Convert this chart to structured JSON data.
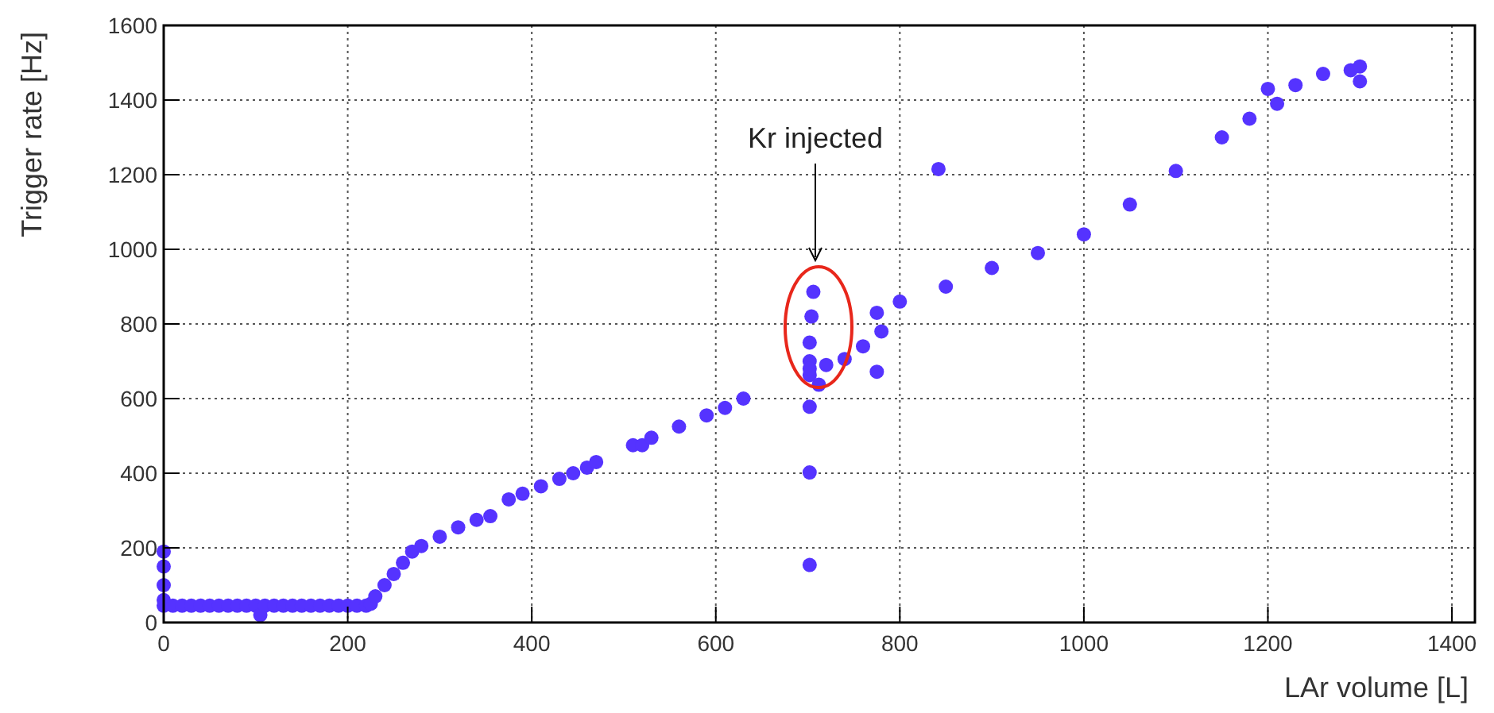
{
  "chart_data": {
    "type": "scatter",
    "xlabel": "LAr volume [L]",
    "ylabel": "Trigger rate [Hz]",
    "xlim": [
      0,
      1425
    ],
    "ylim": [
      0,
      1600
    ],
    "xticks": [
      0,
      200,
      400,
      600,
      800,
      1000,
      1200,
      1400
    ],
    "yticks": [
      0,
      200,
      400,
      600,
      800,
      1000,
      1200,
      1400,
      1600
    ],
    "grid": true,
    "marker": "circle",
    "annotations": [
      "Kr injected"
    ],
    "series": [
      {
        "color": "#5533ff",
        "x": [
          0,
          0,
          0,
          0,
          0,
          10,
          20,
          30,
          40,
          50,
          60,
          70,
          80,
          90,
          100,
          105,
          110,
          120,
          130,
          140,
          150,
          160,
          170,
          180,
          190,
          200,
          210,
          220,
          225,
          230,
          240,
          250,
          260,
          270,
          280,
          300,
          320,
          340,
          355,
          375,
          390,
          410,
          430,
          445,
          460,
          470,
          510,
          520,
          530,
          560,
          590,
          610,
          630,
          702,
          702,
          702,
          704,
          706,
          702,
          702,
          702,
          702,
          712,
          720,
          740,
          760,
          775,
          775,
          780,
          800,
          842,
          850,
          900,
          950,
          1000,
          1050,
          1100,
          1150,
          1180,
          1200,
          1210,
          1230,
          1260,
          1290,
          1300,
          1300
        ],
        "values": [
          190,
          150,
          100,
          60,
          45,
          45,
          45,
          45,
          45,
          45,
          45,
          45,
          45,
          45,
          45,
          20,
          45,
          45,
          45,
          45,
          45,
          45,
          45,
          45,
          45,
          45,
          45,
          45,
          50,
          70,
          100,
          130,
          160,
          190,
          205,
          230,
          255,
          275,
          285,
          330,
          345,
          365,
          385,
          400,
          415,
          430,
          475,
          475,
          495,
          525,
          555,
          575,
          600,
          663,
          700,
          750,
          820,
          886,
          680,
          578,
          402,
          154,
          637,
          690,
          706,
          740,
          830,
          672,
          780,
          860,
          1215,
          900,
          950,
          990,
          1040,
          1120,
          1210,
          1300,
          1350,
          1430,
          1390,
          1440,
          1470,
          1480,
          1490,
          1450
        ]
      }
    ]
  }
}
